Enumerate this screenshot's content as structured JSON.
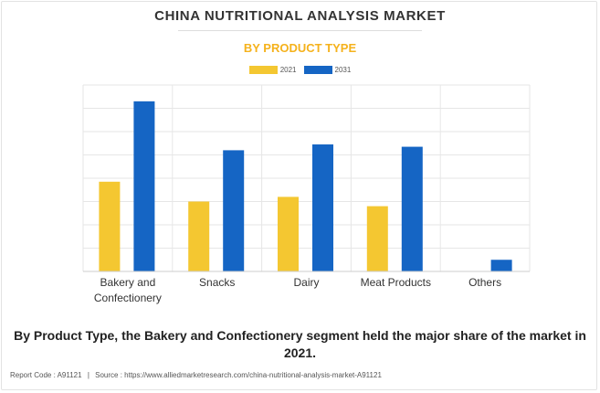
{
  "chart_data": {
    "type": "bar",
    "title": "CHINA NUTRITIONAL ANALYSIS MARKET",
    "subtitle": "BY PRODUCT TYPE",
    "categories": [
      [
        "Bakery and",
        "Confectionery"
      ],
      [
        "Snacks"
      ],
      [
        "Dairy"
      ],
      [
        "Meat Products"
      ],
      [
        "Others"
      ]
    ],
    "series": [
      {
        "name": "2021",
        "color": "#f4c731",
        "values": [
          3.85,
          3.0,
          3.2,
          2.8,
          0.0
        ]
      },
      {
        "name": "2031",
        "color": "#1565c4",
        "values": [
          7.3,
          5.2,
          5.45,
          5.35,
          0.5
        ]
      }
    ],
    "ylim": [
      0,
      8
    ],
    "grid": true,
    "legend_position": "top-center",
    "xlabel": "",
    "ylabel": ""
  },
  "caption": "By Product Type, the Bakery and Confectionery segment held the major share of the market in 2021.",
  "footer": {
    "report_code": "Report Code : A91121",
    "separator": "|",
    "source": "Source : https://www.alliedmarketresearch.com/china-nutritional-analysis-market-A91121"
  }
}
